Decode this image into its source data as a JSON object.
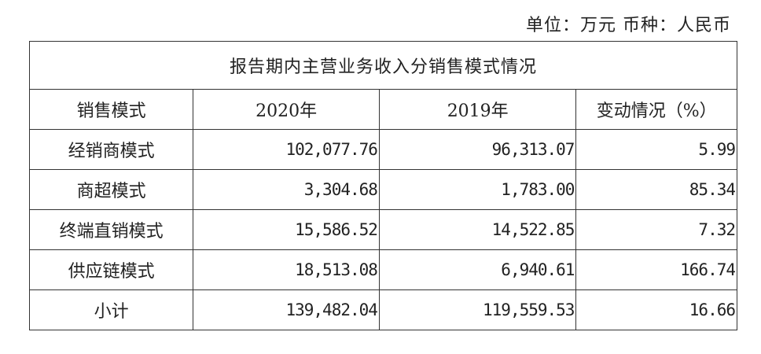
{
  "unit_note": "单位：万元 币种：人民币",
  "table": {
    "title": "报告期内主营业务收入分销售模式情况",
    "headers": [
      "销售模式",
      "2020年",
      "2019年",
      "变动情况（%）"
    ],
    "rows": [
      [
        "经销商模式",
        "102,077.76",
        "96,313.07",
        "5.99"
      ],
      [
        "商超模式",
        "3,304.68",
        "1,783.00",
        "85.34"
      ],
      [
        "终端直销模式",
        "15,586.52",
        "14,522.85",
        "7.32"
      ],
      [
        "供应链模式",
        "18,513.08",
        "6,940.61",
        "166.74"
      ],
      [
        "小计",
        "139,482.04",
        "119,559.53",
        "16.66"
      ]
    ]
  }
}
